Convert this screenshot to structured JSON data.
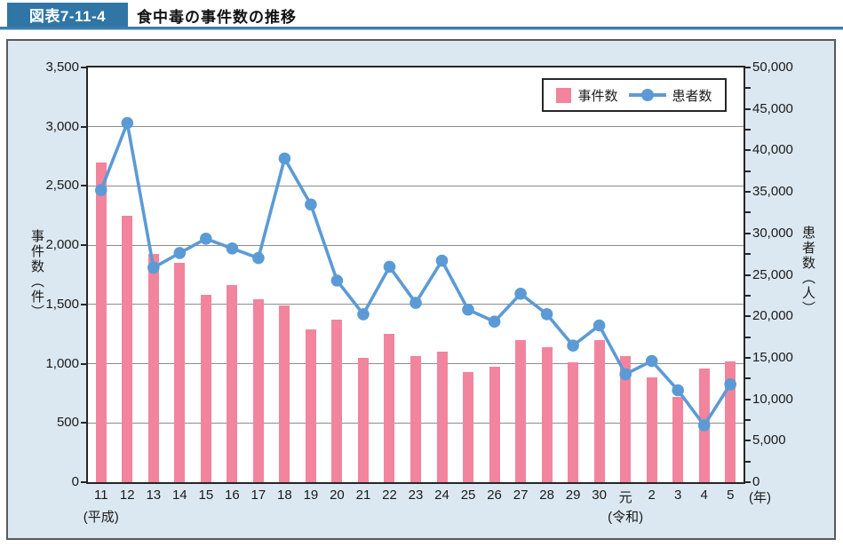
{
  "header": {
    "figure_label": "図表7-11-4",
    "title": "食中毒の事件数の推移"
  },
  "chart_data": {
    "type": "bar",
    "title": "食中毒の事件数の推移",
    "categories": [
      "11",
      "12",
      "13",
      "14",
      "15",
      "16",
      "17",
      "18",
      "19",
      "20",
      "21",
      "22",
      "23",
      "24",
      "25",
      "26",
      "27",
      "28",
      "29",
      "30",
      "元",
      "2",
      "3",
      "4",
      "5"
    ],
    "series": [
      {
        "name": "事件数",
        "type": "bar",
        "axis": "left",
        "color": "#f2849e",
        "values": [
          2697,
          2247,
          1928,
          1850,
          1585,
          1666,
          1545,
          1491,
          1289,
          1369,
          1048,
          1254,
          1062,
          1100,
          931,
          976,
          1202,
          1139,
          1014,
          1200,
          1061,
          887,
          717,
          962,
          1021
        ]
      },
      {
        "name": "患者数",
        "type": "line",
        "axis": "right",
        "color": "#5b9bd5",
        "values": [
          35214,
          43307,
          25862,
          27629,
          29355,
          28175,
          27019,
          39026,
          33477,
          24303,
          20249,
          25972,
          21616,
          26699,
          20802,
          19355,
          22718,
          20252,
          16464,
          18900,
          13018,
          14613,
          11080,
          6856,
          11803
        ]
      }
    ],
    "left_axis": {
      "title": "事件数（件）",
      "min": 0,
      "max": 3500,
      "tick_interval": 500,
      "tick_labels": [
        "0",
        "500",
        "1,000",
        "1,500",
        "2,000",
        "2,500",
        "3,000",
        "3,500"
      ]
    },
    "right_axis": {
      "title": "患者数（人）",
      "min": 0,
      "max": 50000,
      "label_interval": 5000,
      "minor_tick_interval": 2500,
      "tick_labels": [
        "0",
        "5,000",
        "10,000",
        "15,000",
        "20,000",
        "25,000",
        "30,000",
        "35,000",
        "40,000",
        "45,000",
        "50,000"
      ]
    },
    "x_era_notes": [
      {
        "index": 0,
        "label": "(平成)"
      },
      {
        "index": 20,
        "label": "(令和)"
      }
    ],
    "x_unit_label": "(年)",
    "legend_position": "top-right",
    "grid": true
  },
  "colors": {
    "header_bar": "#2f76a6",
    "header_rule": "#3d7dad",
    "panel_background": "#dce8f1",
    "bar": "#f2849e",
    "line": "#5b9bd5",
    "gridline": "#8c8c8c"
  }
}
